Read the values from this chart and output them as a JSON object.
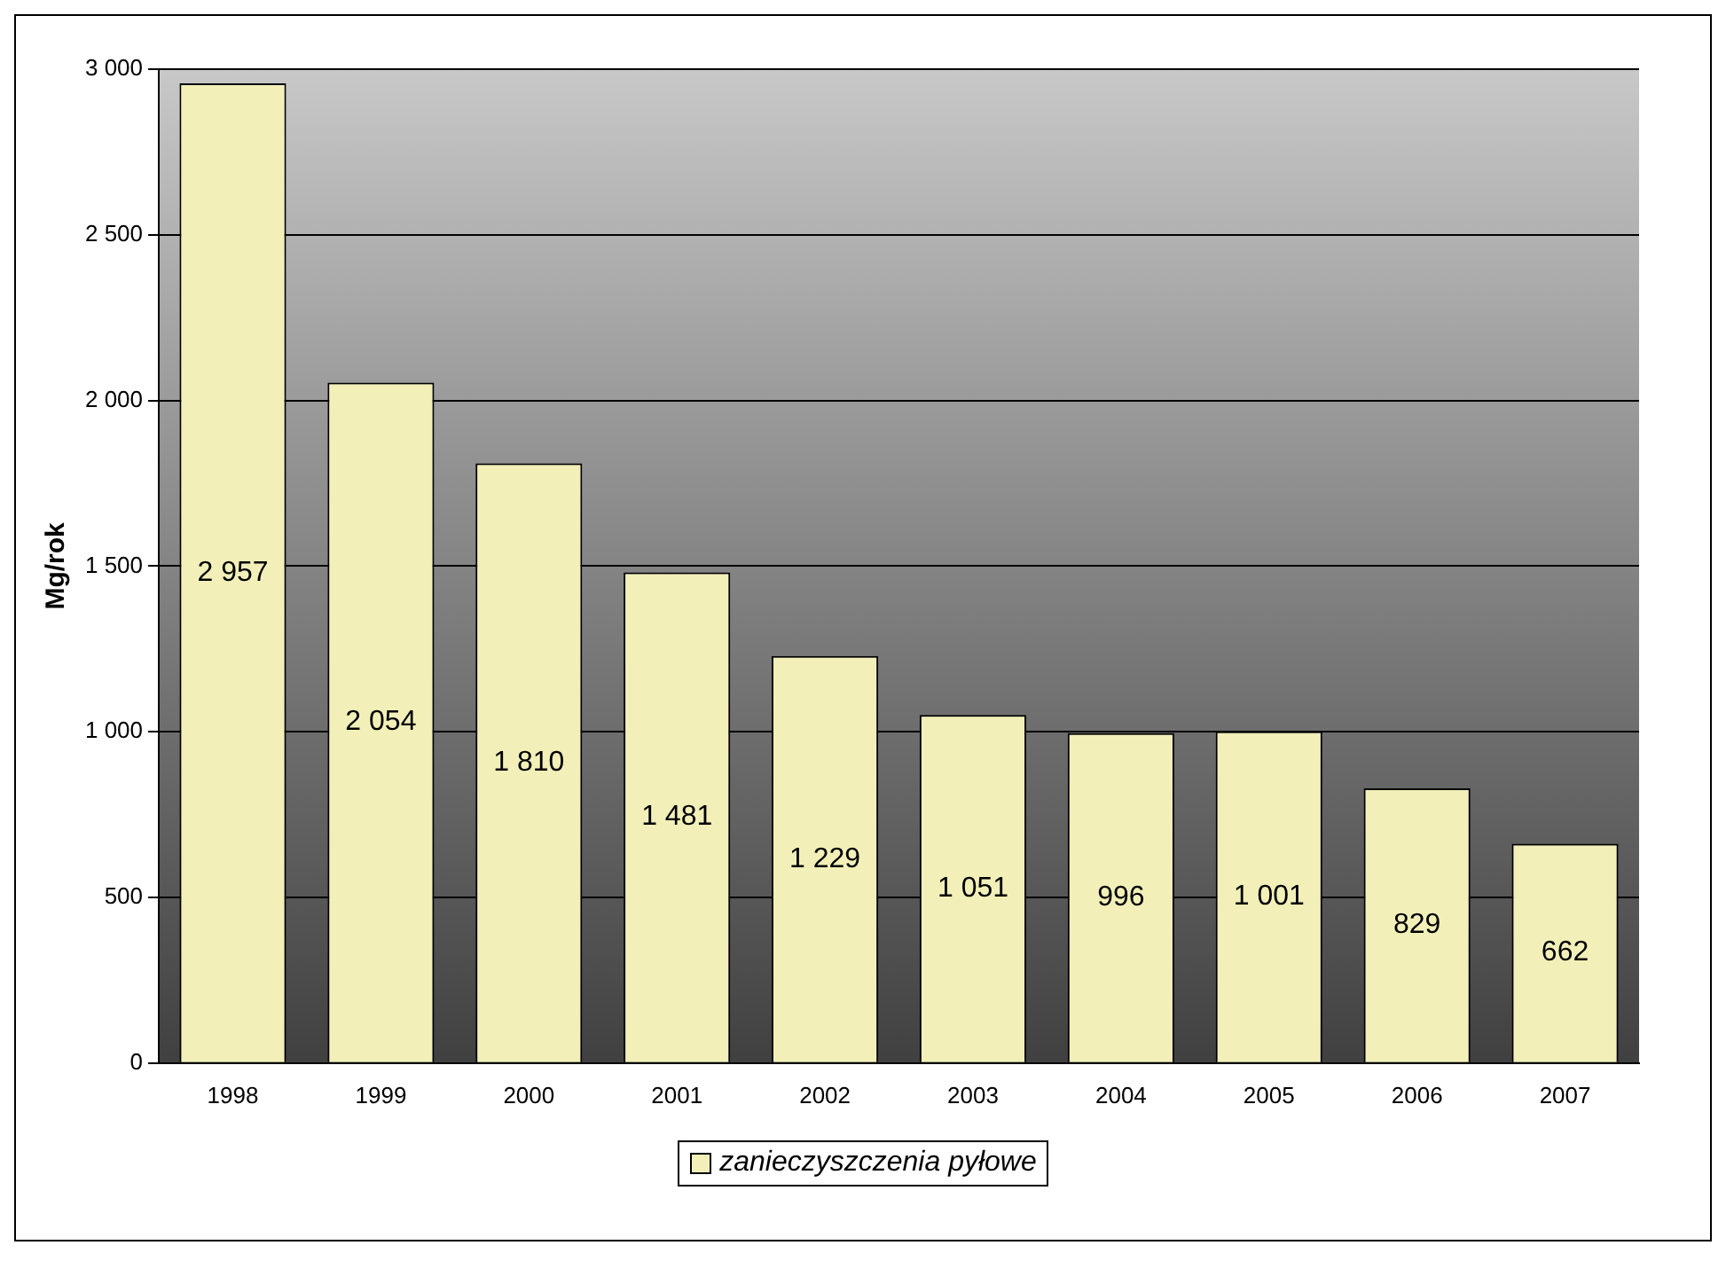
{
  "chart_data": {
    "type": "bar",
    "ylabel": "Mg/rok",
    "categories": [
      "1998",
      "1999",
      "2000",
      "2001",
      "2002",
      "2003",
      "2004",
      "2005",
      "2006",
      "2007"
    ],
    "series": [
      {
        "name": "zanieczyszczenia pyłowe",
        "color": "#f2f0b8",
        "values": [
          2957,
          2054,
          1810,
          1481,
          1229,
          1051,
          996,
          1001,
          829,
          662
        ],
        "value_labels": [
          "2 957",
          "2 054",
          "1 810",
          "1 481",
          "1 229",
          "1 051",
          "996",
          "1 001",
          "829",
          "662"
        ]
      }
    ],
    "ylim": [
      0,
      3000
    ],
    "yticks": [
      {
        "value": 0,
        "label": "0"
      },
      {
        "value": 500,
        "label": "500"
      },
      {
        "value": 1000,
        "label": "1 000"
      },
      {
        "value": 1500,
        "label": "1 500"
      },
      {
        "value": 2000,
        "label": "2 000"
      },
      {
        "value": 2500,
        "label": "2 500"
      },
      {
        "value": 3000,
        "label": "3 000"
      }
    ],
    "grid": "y",
    "legend": "bottom"
  }
}
